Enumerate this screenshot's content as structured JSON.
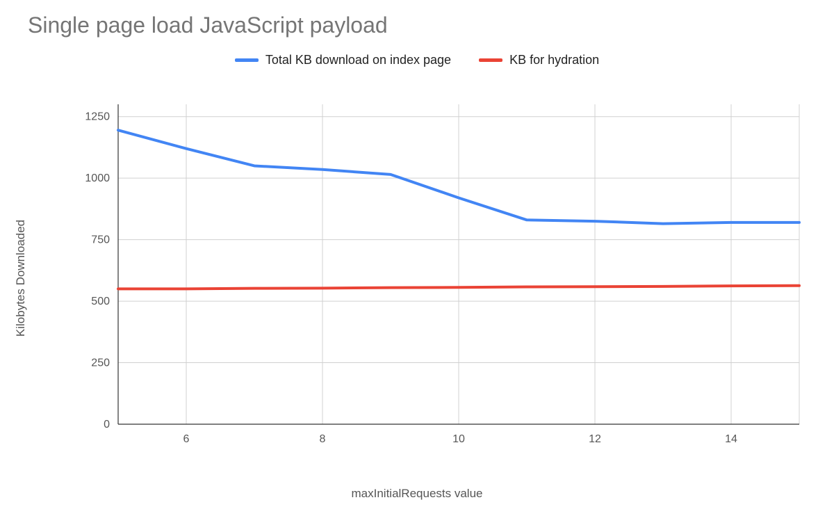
{
  "chart": {
    "type": "line",
    "title": "Single page load JavaScript payload",
    "title_fontsize": 32,
    "title_color": "#757575",
    "background_color": "#ffffff",
    "grid_color": "#d0d0d0",
    "axis_color": "#333333",
    "tick_fontsize": 16,
    "tick_color": "#555555",
    "axis_label_fontsize": 17,
    "axis_label_color": "#555555",
    "x": {
      "label": "maxInitialRequests value",
      "min": 5,
      "max": 15,
      "ticks": [
        6,
        8,
        10,
        12,
        14
      ]
    },
    "y": {
      "label": "Kilobytes Downloaded",
      "min": 0,
      "max": 1300,
      "ticks": [
        0,
        250,
        500,
        750,
        1000,
        1250
      ]
    },
    "legend": {
      "items": [
        {
          "label": "Total KB download on index page",
          "color": "#4285f4"
        },
        {
          "label": "KB for hydration",
          "color": "#ea4335"
        }
      ]
    },
    "series": [
      {
        "name": "Total KB download on index page",
        "color": "#4285f4",
        "width": 4,
        "x": [
          5,
          6,
          7,
          8,
          9,
          10,
          11,
          12,
          13,
          14,
          15
        ],
        "y": [
          1195,
          1120,
          1050,
          1035,
          1015,
          920,
          830,
          825,
          815,
          820,
          820
        ]
      },
      {
        "name": "KB for hydration",
        "color": "#ea4335",
        "width": 4,
        "x": [
          5,
          6,
          7,
          8,
          9,
          10,
          11,
          12,
          13,
          14,
          15
        ],
        "y": [
          550,
          550,
          552,
          553,
          555,
          556,
          558,
          559,
          560,
          562,
          563
        ]
      }
    ]
  }
}
